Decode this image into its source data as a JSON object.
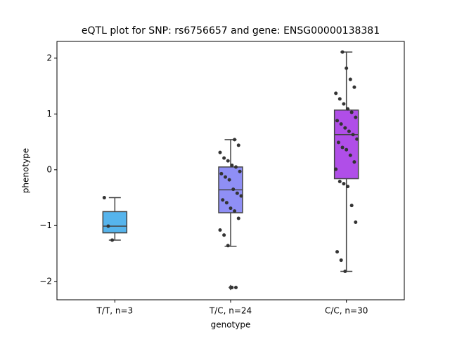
{
  "chart_data": {
    "type": "box",
    "title": "eQTL plot for SNP: rs6756657 and gene: ENSG00000138381",
    "x_label": "genotype",
    "y_label": "phenotype",
    "categories": [
      "T/T, n=3",
      "T/C, n=24",
      "C/C, n=30"
    ],
    "colors": [
      "#56b4ec",
      "#8f8ff5",
      "#b04ee8"
    ],
    "whisker_low": [
      -1.26,
      -1.37,
      -1.82
    ],
    "q1": [
      -1.13,
      -0.77,
      -0.16
    ],
    "median": [
      -1.01,
      -0.36,
      0.63
    ],
    "q3": [
      -0.75,
      0.05,
      1.07
    ],
    "whisker_high": [
      -0.5,
      0.54,
      2.11
    ],
    "outliers": [
      [],
      [
        -2.11
      ],
      []
    ],
    "points": [
      [
        -0.5,
        -1.01,
        -1.26
      ],
      [
        0.54,
        0.44,
        0.31,
        0.21,
        0.16,
        0.08,
        0.05,
        -0.03,
        -0.07,
        -0.13,
        -0.18,
        -0.35,
        -0.42,
        -0.47,
        -0.54,
        -0.59,
        -0.69,
        -0.74,
        -0.87,
        -1.08,
        -1.17,
        -1.36,
        -2.11,
        -2.11
      ],
      [
        2.11,
        1.82,
        1.62,
        1.48,
        1.37,
        1.27,
        1.18,
        1.09,
        1.03,
        0.94,
        0.88,
        0.82,
        0.75,
        0.69,
        0.63,
        0.55,
        0.49,
        0.4,
        0.36,
        0.26,
        0.14,
        0.01,
        -0.21,
        -0.25,
        -0.3,
        -0.64,
        -0.94,
        -1.47,
        -1.62,
        -1.82
      ]
    ],
    "point_color": "#333333",
    "ylim": [
      -2.33,
      2.3
    ],
    "yticks": [
      {
        "value": -2,
        "label": "−2"
      },
      {
        "value": -1,
        "label": "−1"
      },
      0,
      1,
      2
    ]
  }
}
